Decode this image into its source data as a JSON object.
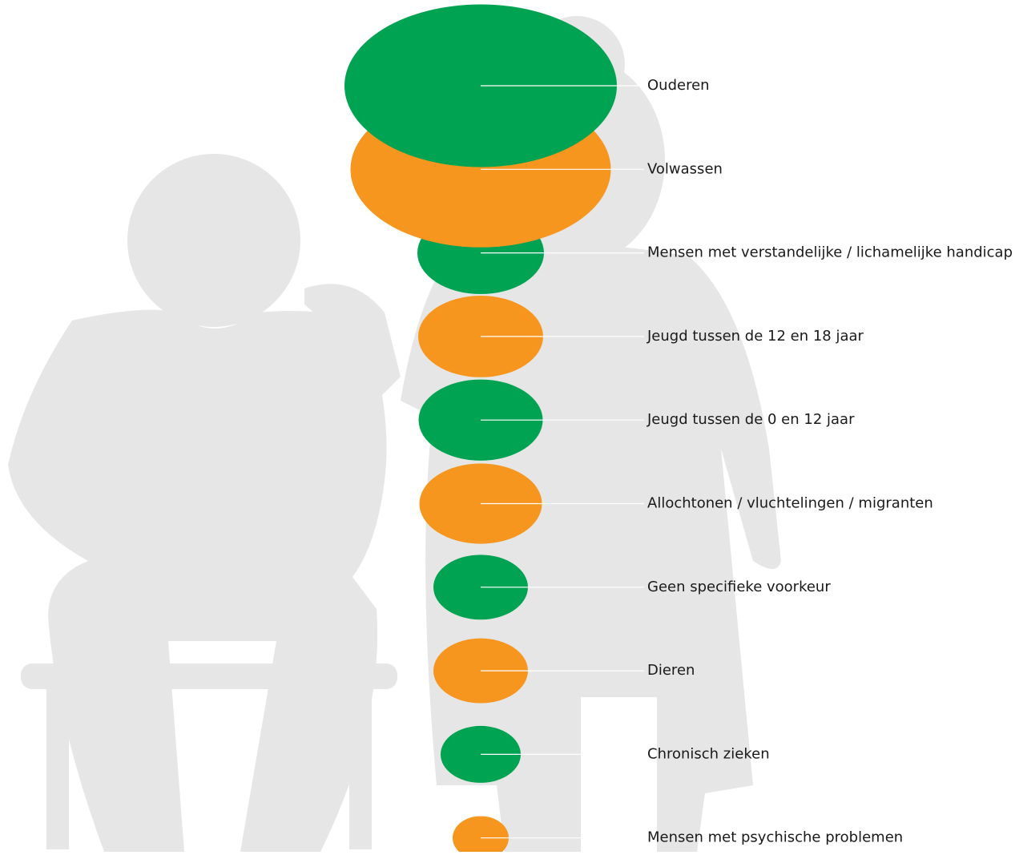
{
  "chart_data": {
    "type": "bubble",
    "categories": [
      "Ouderen",
      "Volwassen",
      "Mensen met verstandelijke / lichamelijke handicap",
      "Jeugd tussen de 12 en 18 jaar",
      "Jeugd tussen de 0 en 12 jaar",
      "Allochtonen / vluchtelingen / migranten",
      "Geen specifieke voorkeur",
      "Dieren",
      "Chronisch zieken",
      "Mensen met psychische problemen"
    ],
    "values": [
      340,
      325,
      158,
      156,
      155,
      153,
      118,
      118,
      100,
      70
    ],
    "colors": [
      "#00a351",
      "#f6961f",
      "#00a351",
      "#f6961f",
      "#00a351",
      "#f6961f",
      "#00a351",
      "#f6961f",
      "#00a351",
      "#f6961f"
    ]
  }
}
